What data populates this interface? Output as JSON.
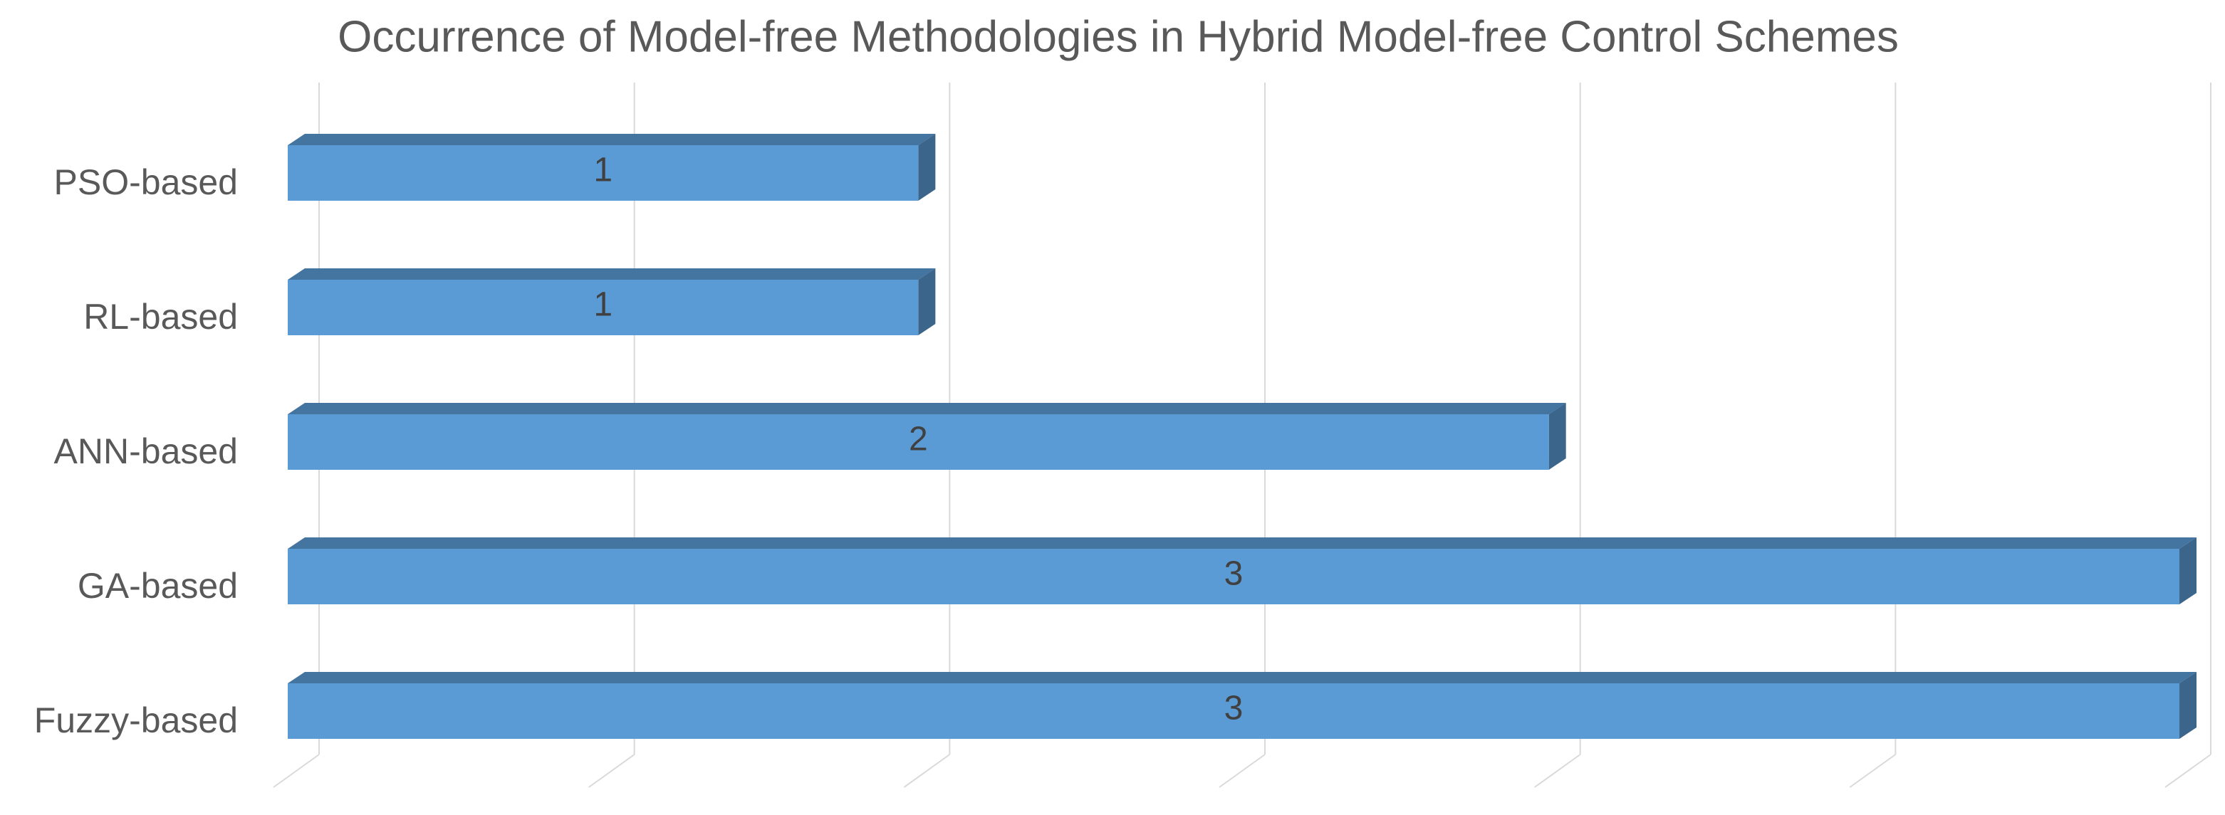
{
  "chart_data": {
    "type": "bar3d_horizontal",
    "title": "Occurrence of Model-free Methodologies in Hybrid Model-free Control Schemes",
    "categories": [
      "PSO-based",
      "RL-based",
      "ANN-based",
      "GA-based",
      "Fuzzy-based"
    ],
    "values": [
      1,
      1,
      2,
      3,
      3
    ],
    "color": "#5b9bd5",
    "xlim": [
      0,
      3
    ],
    "xticks": [
      0,
      0.5,
      1,
      1.5,
      2,
      2.5,
      3
    ],
    "tick_labels": false,
    "grid": true,
    "data_labels": true
  }
}
